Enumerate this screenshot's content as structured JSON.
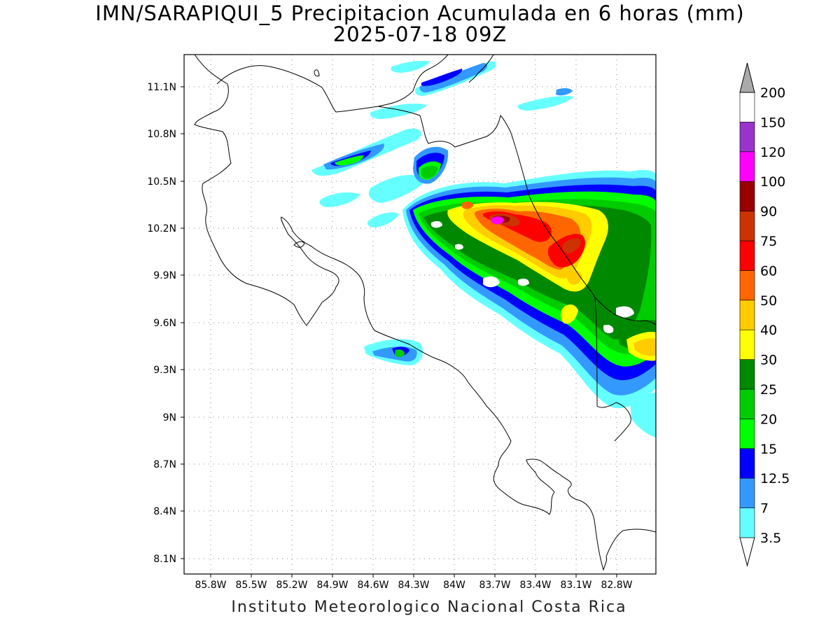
{
  "title": {
    "line1": "IMN/SARAPIQUI_5 Precipitacion Acumulada en 6 horas (mm)",
    "line2": "2025-07-18 09Z"
  },
  "footer": "Instituto Meteorologico Nacional Costa Rica",
  "axes": {
    "lon_range": [
      -85.98,
      -81.98
    ],
    "lat_range": [
      7.97,
      11.31
    ],
    "y_ticks": [
      "11.1N",
      "10.8N",
      "10.5N",
      "10.2N",
      "9.9N",
      "9.6N",
      "9.3N",
      "9N",
      "8.7N",
      "8.4N",
      "8.1N"
    ],
    "x_ticks": [
      "85.8W",
      "85.5W",
      "85.2W",
      "84.9W",
      "84.6W",
      "84.3W",
      "84W",
      "83.7W",
      "83.4W",
      "83.1W",
      "82.8W"
    ],
    "grid": "dotted"
  },
  "colorbar": {
    "labels": [
      "3.5",
      "7",
      "12.5",
      "15",
      "20",
      "25",
      "30",
      "40",
      "50",
      "60",
      "75",
      "90",
      "100",
      "120",
      "150",
      "200"
    ],
    "colors": [
      "#66ffff",
      "#3399ff",
      "#0000ff",
      "#00ff00",
      "#00cc00",
      "#008800",
      "#ffff00",
      "#ffcc00",
      "#ff6600",
      "#ff0000",
      "#cc3300",
      "#990000",
      "#ff00ff",
      "#9933cc",
      "#ffffff",
      "#aaaaaa"
    ],
    "under_color": "#ffffff",
    "over_color": "#aaaaaa"
  }
}
